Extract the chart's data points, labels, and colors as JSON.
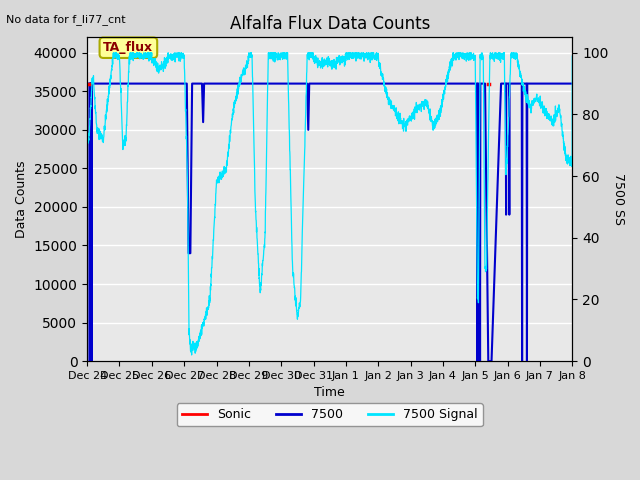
{
  "title": "Alfalfa Flux Data Counts",
  "subtitle": "No data for f_li77_cnt",
  "xlabel": "Time",
  "ylabel_left": "Data Counts",
  "ylabel_right": "7500 SS",
  "annotation_label": "TA_flux",
  "fig_facecolor": "#d8d8d8",
  "plot_facecolor": "#e8e8e8",
  "ylim_left": [
    0,
    42000
  ],
  "ylim_right": [
    0,
    105
  ],
  "yticks_left": [
    0,
    5000,
    10000,
    15000,
    20000,
    25000,
    30000,
    35000,
    40000
  ],
  "yticks_right_vals": [
    0,
    20,
    40,
    60,
    80,
    100
  ],
  "xtick_labels": [
    "Dec 24",
    "Dec 25",
    "Dec 26",
    "Dec 27",
    "Dec 28",
    "Dec 29",
    "Dec 30",
    "Dec 31",
    "Jan 1",
    "Jan 2",
    "Jan 3",
    "Jan 4",
    "Jan 5",
    "Jan 6",
    "Jan 7",
    "Jan 8"
  ],
  "legend_entries": [
    "Sonic",
    "7500",
    "7500 Signal"
  ],
  "sonic_color": "#ff0000",
  "count7500_color": "#0000cd",
  "signal_color": "#00e5ff",
  "grid_color": "#ffffff",
  "title_fontsize": 12,
  "label_fontsize": 9,
  "tick_fontsize": 8
}
